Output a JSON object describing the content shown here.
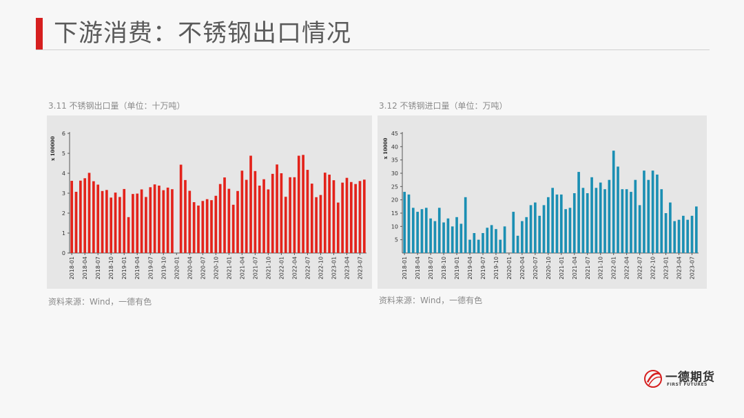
{
  "page": {
    "title": "下游消费：不锈钢出口情况"
  },
  "charts": [
    {
      "caption": "3.11 不锈钢出口量（单位：十万吨）",
      "source": "资料来源：Wind，一德有色"
    },
    {
      "caption": "3.12 不锈钢进口量（单位：万吨）",
      "source": "资料来源：Wind，一德有色"
    }
  ],
  "logo": {
    "name": "一德期货",
    "sub": "FIRST FUTURES"
  },
  "chart_data": [
    {
      "type": "bar",
      "title": "3.11 不锈钢出口量（单位：十万吨）",
      "ylabel": "x 100000",
      "ylim": [
        0,
        6
      ],
      "yticks": [
        0,
        1,
        2,
        3,
        4,
        5,
        6
      ],
      "color": "#e3231b",
      "xtick_labels": [
        "2018-01",
        "2018-04",
        "2018-07",
        "2018-10",
        "2019-01",
        "2019-04",
        "2019-07",
        "2019-10",
        "2020-01",
        "2020-04",
        "2020-07",
        "2020-10",
        "2021-01",
        "2021-04",
        "2021-07",
        "2021-10",
        "2022-01",
        "2022-04",
        "2022-07",
        "2022-10",
        "2023-01",
        "2023-04",
        "2023-07"
      ],
      "categories": [
        "2018-01",
        "2018-02",
        "2018-03",
        "2018-04",
        "2018-05",
        "2018-06",
        "2018-07",
        "2018-08",
        "2018-09",
        "2018-10",
        "2018-11",
        "2018-12",
        "2019-01",
        "2019-02",
        "2019-03",
        "2019-04",
        "2019-05",
        "2019-06",
        "2019-07",
        "2019-08",
        "2019-09",
        "2019-10",
        "2019-11",
        "2019-12",
        "2020-01",
        "2020-02",
        "2020-03",
        "2020-04",
        "2020-05",
        "2020-06",
        "2020-07",
        "2020-08",
        "2020-09",
        "2020-10",
        "2020-11",
        "2020-12",
        "2021-01",
        "2021-02",
        "2021-03",
        "2021-04",
        "2021-05",
        "2021-06",
        "2021-07",
        "2021-08",
        "2021-09",
        "2021-10",
        "2021-11",
        "2021-12",
        "2022-01",
        "2022-02",
        "2022-03",
        "2022-04",
        "2022-05",
        "2022-06",
        "2022-07",
        "2022-08",
        "2022-09",
        "2022-10",
        "2022-11",
        "2022-12",
        "2023-01",
        "2023-02",
        "2023-03",
        "2023-04",
        "2023-05",
        "2023-06",
        "2023-07",
        "2023-08"
      ],
      "values": [
        3.62,
        3.07,
        3.63,
        3.75,
        4.02,
        3.6,
        3.43,
        3.11,
        3.16,
        2.78,
        3.03,
        2.81,
        3.21,
        1.8,
        2.96,
        2.98,
        3.19,
        2.81,
        3.3,
        3.44,
        3.38,
        3.15,
        3.28,
        3.2,
        null,
        4.43,
        3.66,
        3.12,
        2.55,
        2.38,
        2.61,
        2.7,
        2.65,
        2.87,
        3.46,
        3.79,
        3.22,
        2.42,
        3.11,
        4.13,
        3.67,
        4.88,
        4.11,
        3.38,
        3.7,
        3.19,
        3.97,
        4.44,
        4.0,
        2.82,
        3.8,
        3.8,
        4.88,
        4.92,
        4.17,
        3.48,
        2.8,
        2.91,
        4.03,
        3.93,
        3.65,
        2.53,
        3.53,
        3.77,
        3.56,
        3.46,
        3.61,
        3.68
      ]
    },
    {
      "type": "bar",
      "title": "3.12 不锈钢进口量（单位：万吨）",
      "ylabel": "x 10000",
      "ylim": [
        0,
        45
      ],
      "yticks": [
        5,
        10,
        15,
        20,
        25,
        30,
        35,
        40,
        45
      ],
      "color": "#1b8fb3",
      "xtick_labels": [
        "2018-01",
        "2018-04",
        "2018-07",
        "2018-10",
        "2019-01",
        "2019-04",
        "2019-07",
        "2019-10",
        "2020-01",
        "2020-04",
        "2020-07",
        "2020-10",
        "2021-01",
        "2021-04",
        "2021-07",
        "2021-10",
        "2022-01",
        "2022-04",
        "2022-07",
        "2022-10",
        "2023-01",
        "2023-04",
        "2023-07"
      ],
      "categories": [
        "2018-01",
        "2018-02",
        "2018-03",
        "2018-04",
        "2018-05",
        "2018-06",
        "2018-07",
        "2018-08",
        "2018-09",
        "2018-10",
        "2018-11",
        "2018-12",
        "2019-01",
        "2019-02",
        "2019-03",
        "2019-04",
        "2019-05",
        "2019-06",
        "2019-07",
        "2019-08",
        "2019-09",
        "2019-10",
        "2019-11",
        "2019-12",
        "2020-01",
        "2020-02",
        "2020-03",
        "2020-04",
        "2020-05",
        "2020-06",
        "2020-07",
        "2020-08",
        "2020-09",
        "2020-10",
        "2020-11",
        "2020-12",
        "2021-01",
        "2021-02",
        "2021-03",
        "2021-04",
        "2021-05",
        "2021-06",
        "2021-07",
        "2021-08",
        "2021-09",
        "2021-10",
        "2021-11",
        "2021-12",
        "2022-01",
        "2022-02",
        "2022-03",
        "2022-04",
        "2022-05",
        "2022-06",
        "2022-07",
        "2022-08",
        "2022-09",
        "2022-10",
        "2022-11",
        "2022-12",
        "2023-01",
        "2023-02",
        "2023-03",
        "2023-04",
        "2023-05",
        "2023-06",
        "2023-07",
        "2023-08"
      ],
      "values": [
        23,
        22,
        17,
        15.5,
        16.5,
        17,
        13,
        12,
        17,
        11.5,
        13,
        10,
        13.5,
        11,
        21,
        5,
        7.5,
        5,
        7.5,
        9.5,
        10.5,
        9,
        5,
        10,
        null,
        15.5,
        6.5,
        12,
        13.5,
        18,
        19,
        14,
        18,
        21,
        24.5,
        22,
        22,
        16.5,
        17,
        22.5,
        30.5,
        24.5,
        22.5,
        28.5,
        24.5,
        26.5,
        24,
        27.5,
        38.5,
        32.5,
        24,
        24,
        23,
        27.5,
        18,
        31,
        27.5,
        31,
        29.5,
        24,
        15,
        19,
        12,
        12.5,
        14,
        12.5,
        14,
        17.5
      ]
    }
  ]
}
